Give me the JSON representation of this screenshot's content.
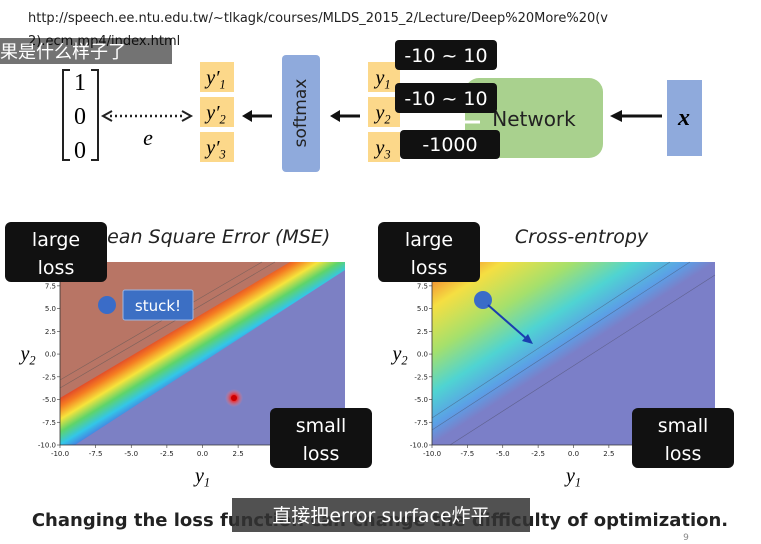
{
  "video_url_lines": [
    "http://speech.ee.ntu.edu.tw/~tlkagk/courses/MLDS_2015_2/Lecture/Deep%20More%20(v",
    "2).ecm.mp4/index.html"
  ],
  "subtitle_top": "果是什么样子了",
  "diagram": {
    "target": [
      "1",
      "0",
      "0"
    ],
    "error": "e",
    "outputs": [
      {
        "base": "y′",
        "sub": "1"
      },
      {
        "base": "y′",
        "sub": "2"
      },
      {
        "base": "y′",
        "sub": "3"
      }
    ],
    "softmax": "softmax",
    "logits": [
      {
        "base": "y",
        "sub": "1"
      },
      {
        "base": "y",
        "sub": "2"
      },
      {
        "base": "y",
        "sub": "3"
      }
    ],
    "network": "Network",
    "input": "x",
    "ranges": [
      "-10 ~ 10",
      "-10 ~ 10",
      "-1000"
    ]
  },
  "plots": [
    {
      "title": "Mean Square Error (MSE)",
      "large": [
        "large",
        "loss"
      ],
      "small": [
        "small",
        "loss"
      ],
      "y_label": {
        "base": "y",
        "sub": "2"
      },
      "x_label": {
        "base": "y",
        "sub": "1"
      },
      "yticks": [
        "7.5",
        "5.0",
        "2.5",
        "0.0",
        "-2.5",
        "-5.0",
        "-7.5",
        "-10.0"
      ],
      "xticks": [
        "-10.0",
        "-7.5",
        "-5.0",
        "-2.5",
        "0.0",
        "2.5"
      ],
      "note": "stuck!"
    },
    {
      "title": "Cross-entropy",
      "large": [
        "large",
        "loss"
      ],
      "small": [
        "small",
        "loss"
      ],
      "y_label": {
        "base": "y",
        "sub": "2"
      },
      "x_label": {
        "base": "y",
        "sub": "1"
      },
      "yticks": [
        "7.5",
        "5.0",
        "2.5",
        "0.0",
        "-2.5",
        "-5.0",
        "-7.5",
        "-10.0"
      ],
      "xticks": [
        "-10.0",
        "-7.5",
        "-5.0",
        "-2.5",
        "0.0",
        "2.5"
      ]
    }
  ],
  "caption": "Changing the loss function can change the difficulty of optimization.",
  "subtitle_bottom": "直接把error surface炸平",
  "page_number": "9"
}
